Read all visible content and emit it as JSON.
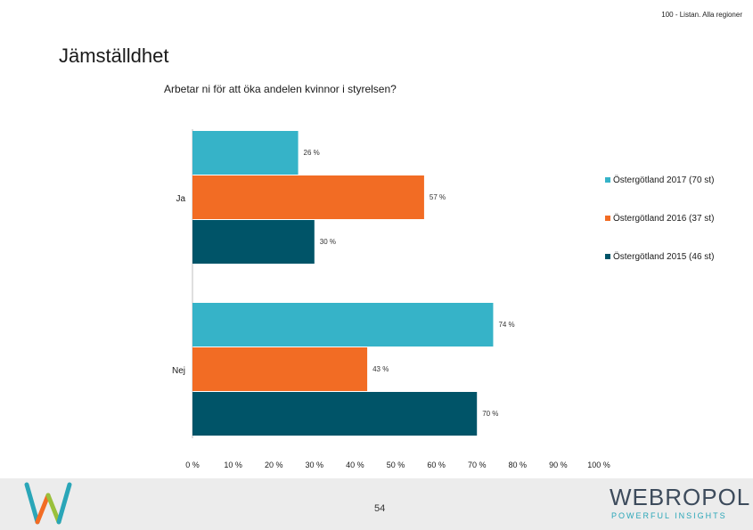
{
  "header": {
    "tag": "100 - Listan. Alla regioner"
  },
  "page_title": "Jämställdhet",
  "page_number": "54",
  "footer": {
    "logo_main": "WEBROPOL",
    "logo_tagline": "POWERFUL INSIGHTS"
  },
  "colors": {
    "teal": "#36b3c8",
    "orange": "#f26c24",
    "dark_teal": "#005468",
    "footer_bg": "#ececec"
  },
  "chart_data": {
    "type": "bar",
    "orientation": "horizontal",
    "title": "Arbetar ni för att öka andelen kvinnor i styrelsen?",
    "categories": [
      "Ja",
      "Nej"
    ],
    "series": [
      {
        "name": "Östergötland 2017 (70 st)",
        "color": "#36b3c8",
        "values": [
          26,
          74
        ],
        "labels": [
          "26 %",
          "74 %"
        ]
      },
      {
        "name": "Östergötland 2016 (37 st)",
        "color": "#f26c24",
        "values": [
          57,
          43
        ],
        "labels": [
          "57 %",
          "43 %"
        ]
      },
      {
        "name": "Östergötland 2015 (46 st)",
        "color": "#005468",
        "values": [
          30,
          70
        ],
        "labels": [
          "30 %",
          "70 %"
        ]
      }
    ],
    "x_ticks": [
      "0 %",
      "10 %",
      "20 %",
      "30 %",
      "40 %",
      "50 %",
      "60 %",
      "70 %",
      "80 %",
      "90 %",
      "100 %"
    ],
    "xlim": [
      0,
      100
    ],
    "grid": false,
    "legend_position": "right"
  }
}
